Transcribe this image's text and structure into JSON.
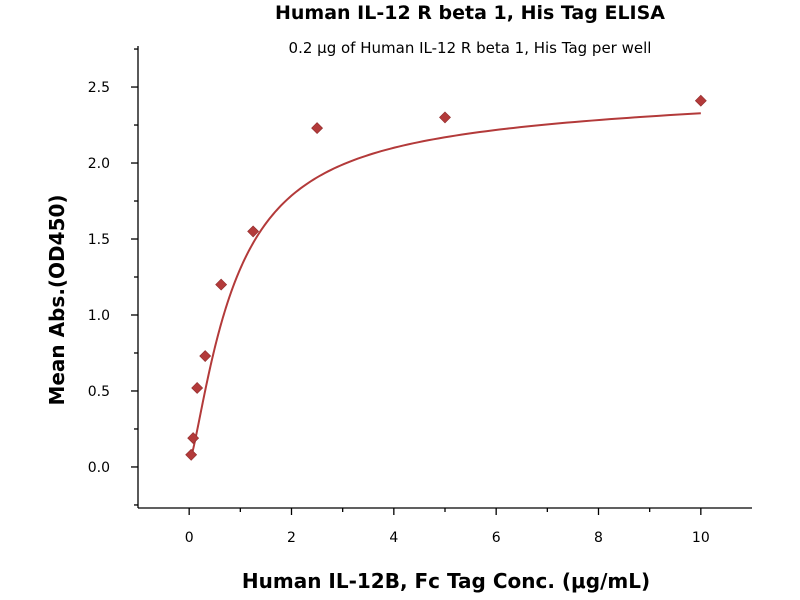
{
  "chart_data": {
    "type": "scatter",
    "title": "Human IL-12 R beta 1, His Tag ELISA",
    "subtitle": "0.2 μg of Human IL-12 R beta 1, His Tag per well",
    "xlabel": "Human IL-12B, Fc Tag Conc. (μg/mL)",
    "ylabel": "Mean Abs.(OD450)",
    "xlim": [
      -1,
      11
    ],
    "ylim": [
      -0.27,
      2.77
    ],
    "xticks": [
      0,
      2,
      4,
      6,
      8,
      10
    ],
    "xtick_labels": [
      "0",
      "2",
      "4",
      "6",
      "8",
      "10"
    ],
    "yticks": [
      0.0,
      0.5,
      1.0,
      1.5,
      2.0,
      2.5
    ],
    "ytick_labels": [
      "0.0",
      "0.5",
      "1.0",
      "1.5",
      "2.0",
      "2.5"
    ],
    "grid": false,
    "series": [
      {
        "x": [
          0.039,
          0.078,
          0.156,
          0.313,
          0.625,
          1.25,
          2.5,
          5,
          10
        ],
        "y": [
          0.08,
          0.19,
          0.52,
          0.73,
          1.2,
          1.55,
          2.23,
          2.3,
          2.41
        ],
        "color": "#b33a3a",
        "marker": "diamond",
        "fit": "4PL"
      }
    ]
  }
}
